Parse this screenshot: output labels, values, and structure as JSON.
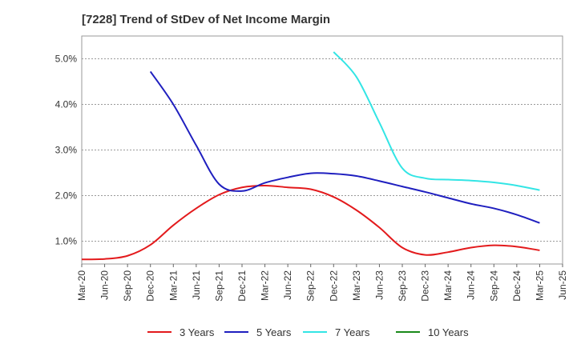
{
  "chart_data": {
    "type": "line",
    "title": "[7228]  Trend of StDev of Net Income Margin",
    "xlabel": "",
    "ylabel": "",
    "x_tick_labels": [
      "Mar-20",
      "Jun-20",
      "Sep-20",
      "Dec-20",
      "Mar-21",
      "Jun-21",
      "Sep-21",
      "Dec-21",
      "Mar-22",
      "Jun-22",
      "Sep-22",
      "Dec-22",
      "Mar-23",
      "Jun-23",
      "Sep-23",
      "Dec-23",
      "Mar-24",
      "Jun-24",
      "Sep-24",
      "Dec-24",
      "Mar-25",
      "Jun-25"
    ],
    "y_tick_labels": [
      "1.0%",
      "2.0%",
      "3.0%",
      "4.0%",
      "5.0%"
    ],
    "y_ticks": [
      1.0,
      2.0,
      3.0,
      4.0,
      5.0
    ],
    "ylim": [
      0.5,
      5.5
    ],
    "grid": true,
    "legend_position": "bottom",
    "series": [
      {
        "name": "3 Years",
        "color": "#e31a1c",
        "values": [
          [
            "Mar-20",
            0.6
          ],
          [
            "Jun-20",
            0.61
          ],
          [
            "Sep-20",
            0.68
          ],
          [
            "Dec-20",
            0.92
          ],
          [
            "Mar-21",
            1.35
          ],
          [
            "Jun-21",
            1.72
          ],
          [
            "Sep-21",
            2.02
          ],
          [
            "Dec-21",
            2.18
          ],
          [
            "Mar-22",
            2.22
          ],
          [
            "Jun-22",
            2.18
          ],
          [
            "Sep-22",
            2.14
          ],
          [
            "Dec-22",
            1.97
          ],
          [
            "Mar-23",
            1.68
          ],
          [
            "Jun-23",
            1.3
          ],
          [
            "Sep-23",
            0.86
          ],
          [
            "Dec-23",
            0.7
          ],
          [
            "Mar-24",
            0.76
          ],
          [
            "Jun-24",
            0.86
          ],
          [
            "Sep-24",
            0.91
          ],
          [
            "Dec-24",
            0.88
          ],
          [
            "Mar-25",
            0.8
          ]
        ]
      },
      {
        "name": "5 Years",
        "color": "#1f1fbf",
        "values": [
          [
            "Dec-20",
            4.72
          ],
          [
            "Mar-21",
            4.0
          ],
          [
            "Jun-21",
            3.1
          ],
          [
            "Sep-21",
            2.25
          ],
          [
            "Dec-21",
            2.1
          ],
          [
            "Mar-22",
            2.28
          ],
          [
            "Jun-22",
            2.4
          ],
          [
            "Sep-22",
            2.49
          ],
          [
            "Dec-22",
            2.48
          ],
          [
            "Mar-23",
            2.43
          ],
          [
            "Jun-23",
            2.32
          ],
          [
            "Sep-23",
            2.2
          ],
          [
            "Dec-23",
            2.08
          ],
          [
            "Mar-24",
            1.95
          ],
          [
            "Jun-24",
            1.82
          ],
          [
            "Sep-24",
            1.72
          ],
          [
            "Dec-24",
            1.58
          ],
          [
            "Mar-25",
            1.4
          ]
        ]
      },
      {
        "name": "7 Years",
        "color": "#33e5e5",
        "values": [
          [
            "Dec-22",
            5.15
          ],
          [
            "Mar-23",
            4.6
          ],
          [
            "Jun-23",
            3.6
          ],
          [
            "Sep-23",
            2.6
          ],
          [
            "Dec-23",
            2.38
          ],
          [
            "Mar-24",
            2.35
          ],
          [
            "Jun-24",
            2.33
          ],
          [
            "Sep-24",
            2.29
          ],
          [
            "Dec-24",
            2.22
          ],
          [
            "Mar-25",
            2.12
          ]
        ]
      },
      {
        "name": "10 Years",
        "color": "#1a8a1a",
        "values": []
      }
    ]
  }
}
